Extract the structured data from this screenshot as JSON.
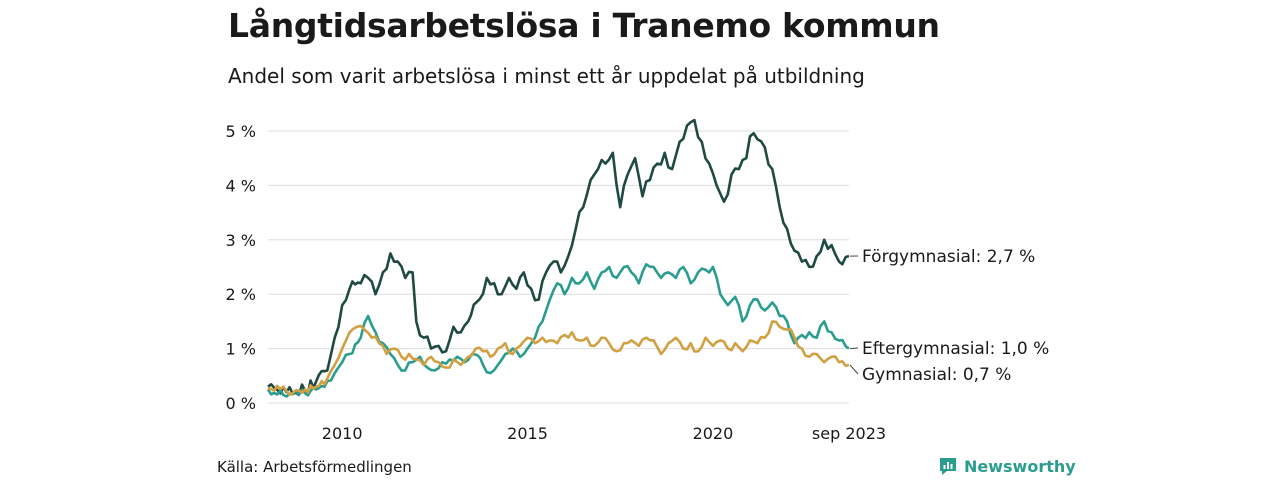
{
  "header": {
    "title": "Långtidsarbetslösa i Tranemo kommun",
    "subtitle": "Andel som varit arbetslösa i minst ett år uppdelat på utbildning"
  },
  "footer": {
    "source": "Källa: Arbetsförmedlingen",
    "brand": "Newsworthy"
  },
  "chart_data": {
    "type": "line",
    "title": "Långtidsarbetslösa i Tranemo kommun",
    "subtitle": "Andel som varit arbetslösa i minst ett år uppdelat på utbildning",
    "xlabel": "",
    "ylabel": "",
    "x_range": [
      2008.0,
      2023.67
    ],
    "ylim": [
      0,
      5.3
    ],
    "y_ticks": [
      0,
      1,
      2,
      3,
      4,
      5
    ],
    "y_tick_labels": [
      "0 %",
      "1 %",
      "2 %",
      "3 %",
      "4 %",
      "5 %"
    ],
    "x_ticks": [
      2010,
      2015,
      2020,
      2023.67
    ],
    "x_tick_labels": [
      "2010",
      "2015",
      "2020",
      "sep 2023"
    ],
    "grid": true,
    "series": [
      {
        "name": "Förgymnasial",
        "end_label": "Förgymnasial: 2,7 %",
        "color": "#1e4a42",
        "points": [
          [
            2008.0,
            0.3
          ],
          [
            2008.5,
            0.2
          ],
          [
            2009.0,
            0.22
          ],
          [
            2009.3,
            0.4
          ],
          [
            2009.6,
            0.6
          ],
          [
            2009.8,
            1.2
          ],
          [
            2010.0,
            1.8
          ],
          [
            2010.2,
            2.1
          ],
          [
            2010.5,
            2.2
          ],
          [
            2010.7,
            2.3
          ],
          [
            2010.9,
            2.0
          ],
          [
            2011.1,
            2.4
          ],
          [
            2011.3,
            2.75
          ],
          [
            2011.5,
            2.6
          ],
          [
            2011.7,
            2.3
          ],
          [
            2011.9,
            2.4
          ],
          [
            2012.0,
            1.5
          ],
          [
            2012.2,
            1.2
          ],
          [
            2012.4,
            1.0
          ],
          [
            2012.6,
            1.05
          ],
          [
            2012.8,
            0.95
          ],
          [
            2013.0,
            1.4
          ],
          [
            2013.2,
            1.3
          ],
          [
            2013.4,
            1.5
          ],
          [
            2013.7,
            1.9
          ],
          [
            2013.9,
            2.3
          ],
          [
            2014.1,
            2.2
          ],
          [
            2014.3,
            2.0
          ],
          [
            2014.5,
            2.3
          ],
          [
            2014.7,
            2.1
          ],
          [
            2014.9,
            2.4
          ],
          [
            2015.1,
            2.1
          ],
          [
            2015.3,
            1.9
          ],
          [
            2015.5,
            2.4
          ],
          [
            2015.7,
            2.6
          ],
          [
            2015.9,
            2.4
          ],
          [
            2016.1,
            2.7
          ],
          [
            2016.3,
            3.2
          ],
          [
            2016.5,
            3.6
          ],
          [
            2016.7,
            4.1
          ],
          [
            2016.9,
            4.3
          ],
          [
            2017.1,
            4.4
          ],
          [
            2017.3,
            4.6
          ],
          [
            2017.5,
            3.6
          ],
          [
            2017.7,
            4.2
          ],
          [
            2017.9,
            4.5
          ],
          [
            2018.1,
            3.8
          ],
          [
            2018.3,
            4.1
          ],
          [
            2018.5,
            4.4
          ],
          [
            2018.7,
            4.6
          ],
          [
            2018.9,
            4.3
          ],
          [
            2019.1,
            4.8
          ],
          [
            2019.3,
            5.1
          ],
          [
            2019.5,
            5.2
          ],
          [
            2019.7,
            4.8
          ],
          [
            2019.9,
            4.4
          ],
          [
            2020.1,
            4.0
          ],
          [
            2020.3,
            3.7
          ],
          [
            2020.5,
            4.2
          ],
          [
            2020.7,
            4.3
          ],
          [
            2020.9,
            4.5
          ],
          [
            2021.0,
            4.9
          ],
          [
            2021.2,
            4.85
          ],
          [
            2021.4,
            4.7
          ],
          [
            2021.6,
            4.3
          ],
          [
            2021.8,
            3.6
          ],
          [
            2022.0,
            3.2
          ],
          [
            2022.2,
            2.8
          ],
          [
            2022.4,
            2.6
          ],
          [
            2022.6,
            2.5
          ],
          [
            2022.8,
            2.7
          ],
          [
            2023.0,
            3.0
          ],
          [
            2023.2,
            2.9
          ],
          [
            2023.4,
            2.6
          ],
          [
            2023.67,
            2.7
          ]
        ]
      },
      {
        "name": "Eftergymnasial",
        "end_label": "Eftergymnasial: 1,0 %",
        "color": "#2a9d8f",
        "points": [
          [
            2008.0,
            0.25
          ],
          [
            2008.5,
            0.12
          ],
          [
            2009.0,
            0.18
          ],
          [
            2009.3,
            0.25
          ],
          [
            2009.6,
            0.4
          ],
          [
            2009.8,
            0.55
          ],
          [
            2010.0,
            0.75
          ],
          [
            2010.2,
            0.9
          ],
          [
            2010.5,
            1.2
          ],
          [
            2010.7,
            1.6
          ],
          [
            2010.9,
            1.3
          ],
          [
            2011.1,
            1.1
          ],
          [
            2011.3,
            0.9
          ],
          [
            2011.5,
            0.7
          ],
          [
            2011.7,
            0.6
          ],
          [
            2011.9,
            0.75
          ],
          [
            2012.1,
            0.85
          ],
          [
            2012.3,
            0.65
          ],
          [
            2012.5,
            0.6
          ],
          [
            2012.7,
            0.75
          ],
          [
            2012.9,
            0.8
          ],
          [
            2013.1,
            0.85
          ],
          [
            2013.3,
            0.75
          ],
          [
            2013.5,
            0.9
          ],
          [
            2013.8,
            0.7
          ],
          [
            2014.0,
            0.55
          ],
          [
            2014.2,
            0.7
          ],
          [
            2014.4,
            0.9
          ],
          [
            2014.6,
            1.0
          ],
          [
            2014.8,
            0.85
          ],
          [
            2015.0,
            1.0
          ],
          [
            2015.2,
            1.2
          ],
          [
            2015.4,
            1.5
          ],
          [
            2015.6,
            1.9
          ],
          [
            2015.8,
            2.2
          ],
          [
            2016.0,
            2.0
          ],
          [
            2016.2,
            2.3
          ],
          [
            2016.4,
            2.2
          ],
          [
            2016.6,
            2.4
          ],
          [
            2016.8,
            2.1
          ],
          [
            2017.0,
            2.4
          ],
          [
            2017.2,
            2.5
          ],
          [
            2017.4,
            2.3
          ],
          [
            2017.6,
            2.5
          ],
          [
            2017.8,
            2.4
          ],
          [
            2018.0,
            2.2
          ],
          [
            2018.2,
            2.55
          ],
          [
            2018.4,
            2.5
          ],
          [
            2018.6,
            2.3
          ],
          [
            2018.8,
            2.4
          ],
          [
            2019.0,
            2.3
          ],
          [
            2019.2,
            2.5
          ],
          [
            2019.4,
            2.2
          ],
          [
            2019.6,
            2.4
          ],
          [
            2019.8,
            2.45
          ],
          [
            2020.0,
            2.5
          ],
          [
            2020.2,
            2.0
          ],
          [
            2020.4,
            1.8
          ],
          [
            2020.6,
            1.95
          ],
          [
            2020.8,
            1.5
          ],
          [
            2021.0,
            1.8
          ],
          [
            2021.2,
            1.9
          ],
          [
            2021.4,
            1.7
          ],
          [
            2021.6,
            1.85
          ],
          [
            2021.8,
            1.6
          ],
          [
            2022.0,
            1.5
          ],
          [
            2022.2,
            1.1
          ],
          [
            2022.4,
            1.25
          ],
          [
            2022.6,
            1.3
          ],
          [
            2022.8,
            1.2
          ],
          [
            2023.0,
            1.5
          ],
          [
            2023.2,
            1.3
          ],
          [
            2023.4,
            1.15
          ],
          [
            2023.67,
            1.0
          ]
        ]
      },
      {
        "name": "Gymnasial",
        "end_label": "Gymnasial: 0,7 %",
        "color": "#d0a042",
        "points": [
          [
            2008.0,
            0.28
          ],
          [
            2008.5,
            0.22
          ],
          [
            2009.0,
            0.25
          ],
          [
            2009.3,
            0.3
          ],
          [
            2009.6,
            0.45
          ],
          [
            2009.8,
            0.7
          ],
          [
            2010.0,
            1.0
          ],
          [
            2010.2,
            1.3
          ],
          [
            2010.4,
            1.4
          ],
          [
            2010.6,
            1.35
          ],
          [
            2010.8,
            1.2
          ],
          [
            2011.0,
            1.1
          ],
          [
            2011.2,
            0.9
          ],
          [
            2011.4,
            1.0
          ],
          [
            2011.6,
            0.85
          ],
          [
            2011.8,
            0.9
          ],
          [
            2012.0,
            0.8
          ],
          [
            2012.2,
            0.7
          ],
          [
            2012.4,
            0.85
          ],
          [
            2012.6,
            0.75
          ],
          [
            2012.8,
            0.65
          ],
          [
            2013.0,
            0.8
          ],
          [
            2013.2,
            0.7
          ],
          [
            2013.4,
            0.85
          ],
          [
            2013.6,
            1.0
          ],
          [
            2013.8,
            0.95
          ],
          [
            2014.0,
            0.85
          ],
          [
            2014.2,
            1.0
          ],
          [
            2014.4,
            1.1
          ],
          [
            2014.6,
            0.9
          ],
          [
            2014.8,
            1.05
          ],
          [
            2015.0,
            1.2
          ],
          [
            2015.2,
            1.1
          ],
          [
            2015.4,
            1.2
          ],
          [
            2015.6,
            1.15
          ],
          [
            2015.8,
            1.1
          ],
          [
            2016.0,
            1.25
          ],
          [
            2016.2,
            1.3
          ],
          [
            2016.4,
            1.15
          ],
          [
            2016.6,
            1.2
          ],
          [
            2016.8,
            1.05
          ],
          [
            2017.0,
            1.2
          ],
          [
            2017.2,
            1.1
          ],
          [
            2017.4,
            0.95
          ],
          [
            2017.6,
            1.1
          ],
          [
            2017.8,
            1.15
          ],
          [
            2018.0,
            1.05
          ],
          [
            2018.2,
            1.2
          ],
          [
            2018.4,
            1.15
          ],
          [
            2018.6,
            0.9
          ],
          [
            2018.8,
            1.1
          ],
          [
            2019.0,
            1.2
          ],
          [
            2019.2,
            1.0
          ],
          [
            2019.4,
            1.1
          ],
          [
            2019.6,
            0.95
          ],
          [
            2019.8,
            1.2
          ],
          [
            2020.0,
            1.05
          ],
          [
            2020.2,
            1.15
          ],
          [
            2020.4,
            1.0
          ],
          [
            2020.6,
            1.1
          ],
          [
            2020.8,
            0.95
          ],
          [
            2021.0,
            1.15
          ],
          [
            2021.2,
            1.1
          ],
          [
            2021.4,
            1.2
          ],
          [
            2021.6,
            1.5
          ],
          [
            2021.8,
            1.4
          ],
          [
            2022.0,
            1.35
          ],
          [
            2022.2,
            1.2
          ],
          [
            2022.4,
            1.0
          ],
          [
            2022.6,
            0.85
          ],
          [
            2022.8,
            0.9
          ],
          [
            2023.0,
            0.75
          ],
          [
            2023.2,
            0.85
          ],
          [
            2023.4,
            0.75
          ],
          [
            2023.67,
            0.7
          ]
        ]
      }
    ]
  }
}
